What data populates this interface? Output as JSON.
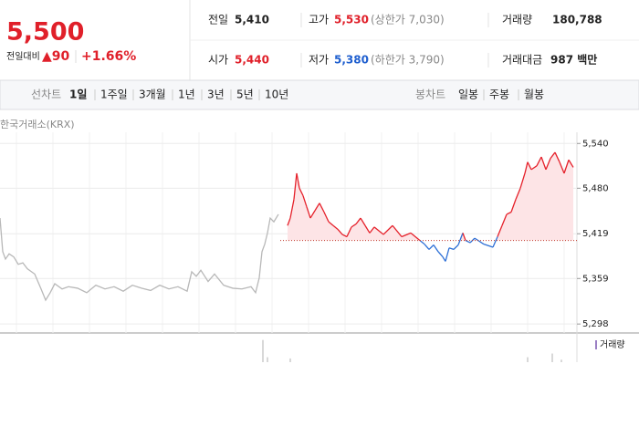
{
  "header": {
    "price": "5,500",
    "change_label": "전일대비",
    "change": "▲90",
    "change_pct": "+1.66%",
    "stats": [
      {
        "label": "전일",
        "value": "5,410"
      },
      {
        "label": "고가",
        "value": "5,530",
        "note": "(상한가 7,030)"
      },
      {
        "label": "거래량",
        "value": "180,788"
      },
      {
        "label": "시가",
        "value": "5,440"
      },
      {
        "label": "저가",
        "value": "5,380",
        "note": "(하한가 3,790)"
      },
      {
        "label": "거래대금",
        "value": "987 백만"
      }
    ]
  },
  "tabs": {
    "line_label": "선차트",
    "line": [
      "1일",
      "1주일",
      "3개월",
      "1년",
      "3년",
      "5년",
      "10년"
    ],
    "candle_label": "봉차트",
    "candle": [
      "일봉",
      "주봉",
      "월봉"
    ]
  },
  "source": "한국거래소(KRX)",
  "chart_data": [
    {
      "type": "line",
      "xlim": [
        0,
        632
      ],
      "ylim": [
        5286,
        5555
      ],
      "baseline": 5410,
      "baseline_color": "#c0392b",
      "yticks": [
        {
          "value": 5298,
          "label": "5,298"
        },
        {
          "value": 5359,
          "label": "5,359"
        },
        {
          "value": 5419,
          "label": "5,419"
        },
        {
          "value": 5480,
          "label": "5,480"
        },
        {
          "value": 5540,
          "label": "5,540"
        }
      ],
      "grid": true,
      "series": [
        {
          "color": "#b8b8b8",
          "x": [
            0,
            3,
            6,
            10,
            15,
            20,
            25,
            30,
            38,
            45,
            50,
            55,
            60,
            68,
            75,
            85,
            95,
            105,
            115,
            125,
            135,
            145,
            155,
            165,
            175,
            185,
            195,
            205,
            210,
            215,
            220,
            228,
            235,
            245,
            255,
            265,
            275,
            280,
            284,
            287,
            290,
            293,
            296,
            300,
            305
          ],
          "values": [
            5440,
            5395,
            5385,
            5392,
            5388,
            5378,
            5380,
            5372,
            5365,
            5345,
            5330,
            5340,
            5352,
            5345,
            5348,
            5346,
            5340,
            5350,
            5345,
            5348,
            5342,
            5350,
            5346,
            5343,
            5350,
            5345,
            5348,
            5342,
            5368,
            5362,
            5370,
            5355,
            5365,
            5350,
            5346,
            5345,
            5348,
            5340,
            5360,
            5395,
            5405,
            5420,
            5440,
            5435,
            5445
          ]
        },
        {
          "color": "#e5202a",
          "color_below": "#2c6fd6",
          "fill": "#fde4e6",
          "x": [
            315,
            318,
            322,
            325,
            328,
            332,
            336,
            340,
            345,
            350,
            355,
            360,
            365,
            370,
            375,
            380,
            385,
            390,
            395,
            400,
            405,
            410,
            420,
            430,
            440,
            450,
            460,
            465,
            470,
            475,
            480,
            485,
            488,
            492,
            497,
            502,
            507,
            510,
            515,
            520,
            530,
            540,
            545,
            550,
            555,
            560,
            565,
            570,
            575,
            578,
            582,
            588,
            593,
            598,
            603,
            608,
            613,
            618,
            623,
            628
          ],
          "values": [
            5430,
            5440,
            5465,
            5500,
            5480,
            5470,
            5455,
            5440,
            5450,
            5460,
            5448,
            5435,
            5430,
            5425,
            5418,
            5415,
            5428,
            5432,
            5440,
            5430,
            5420,
            5428,
            5418,
            5430,
            5415,
            5420,
            5410,
            5405,
            5398,
            5404,
            5395,
            5388,
            5382,
            5400,
            5398,
            5404,
            5420,
            5410,
            5407,
            5413,
            5405,
            5401,
            5415,
            5430,
            5445,
            5448,
            5465,
            5480,
            5500,
            5515,
            5505,
            5510,
            5522,
            5505,
            5520,
            5528,
            5515,
            5500,
            5518,
            5508
          ]
        }
      ]
    },
    {
      "type": "bar",
      "legend": "거래량",
      "color": "#b0b0b0",
      "legend_color": "#9b7fc4",
      "xlim": [
        0,
        632
      ],
      "ylim": [
        0,
        100
      ],
      "x": [
        288,
        293,
        318,
        578,
        605,
        615
      ],
      "values": [
        90,
        20,
        15,
        20,
        35,
        10
      ]
    }
  ]
}
